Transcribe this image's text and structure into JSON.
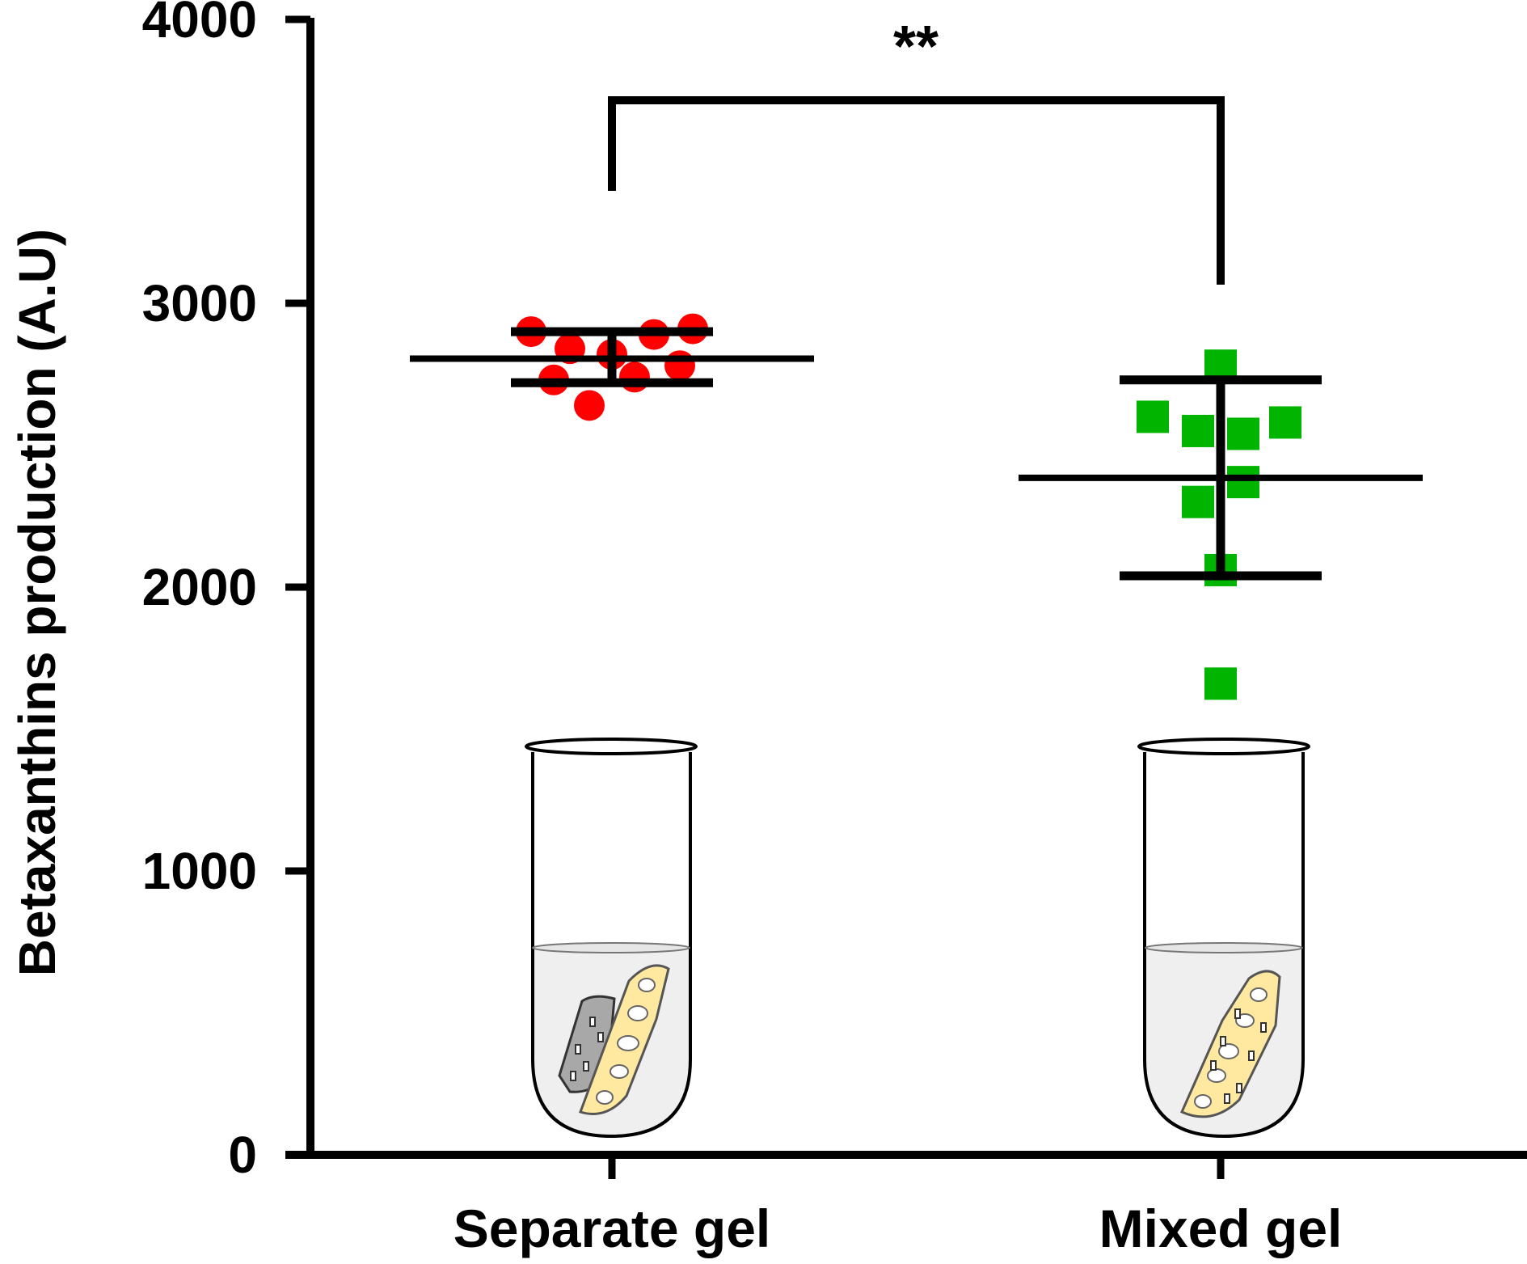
{
  "chart_data": {
    "type": "scatter",
    "ylabel": "Betaxanthins production (A.U)",
    "ylim": [
      0,
      4000
    ],
    "yticks": [
      0,
      1000,
      2000,
      3000,
      4000
    ],
    "categories": [
      "Separate gel",
      "Mixed gel"
    ],
    "series": [
      {
        "category": "Separate gel",
        "marker": "circle",
        "color": "#ff0000",
        "points": [
          {
            "offset": -0.25,
            "value": 2900
          },
          {
            "offset": -0.13,
            "value": 2840
          },
          {
            "offset": 0.0,
            "value": 2820
          },
          {
            "offset": 0.13,
            "value": 2890
          },
          {
            "offset": 0.25,
            "value": 2910
          },
          {
            "offset": -0.18,
            "value": 2730
          },
          {
            "offset": 0.07,
            "value": 2740
          },
          {
            "offset": 0.21,
            "value": 2780
          },
          {
            "offset": -0.07,
            "value": 2640
          }
        ],
        "mean": 2805,
        "error_upper": 2900,
        "error_lower": 2720
      },
      {
        "category": "Mixed gel",
        "marker": "square",
        "color": "#00b400",
        "points": [
          {
            "offset": -0.21,
            "value": 2600
          },
          {
            "offset": -0.07,
            "value": 2550
          },
          {
            "offset": 0.07,
            "value": 2540
          },
          {
            "offset": 0.2,
            "value": 2580
          },
          {
            "offset": 0.0,
            "value": 2780
          },
          {
            "offset": 0.07,
            "value": 2370
          },
          {
            "offset": -0.07,
            "value": 2300
          },
          {
            "offset": 0.0,
            "value": 2060
          },
          {
            "offset": 0.0,
            "value": 1660
          }
        ],
        "mean": 2385,
        "error_upper": 2730,
        "error_lower": 2040
      }
    ],
    "significance": {
      "label": "**",
      "between": [
        "Separate gel",
        "Mixed gel"
      ]
    },
    "colors": {
      "axis": "#000000",
      "gel_yellow": "#ffe8a0",
      "gel_gray": "#a8a8a8",
      "liquid": "#efefef"
    }
  }
}
